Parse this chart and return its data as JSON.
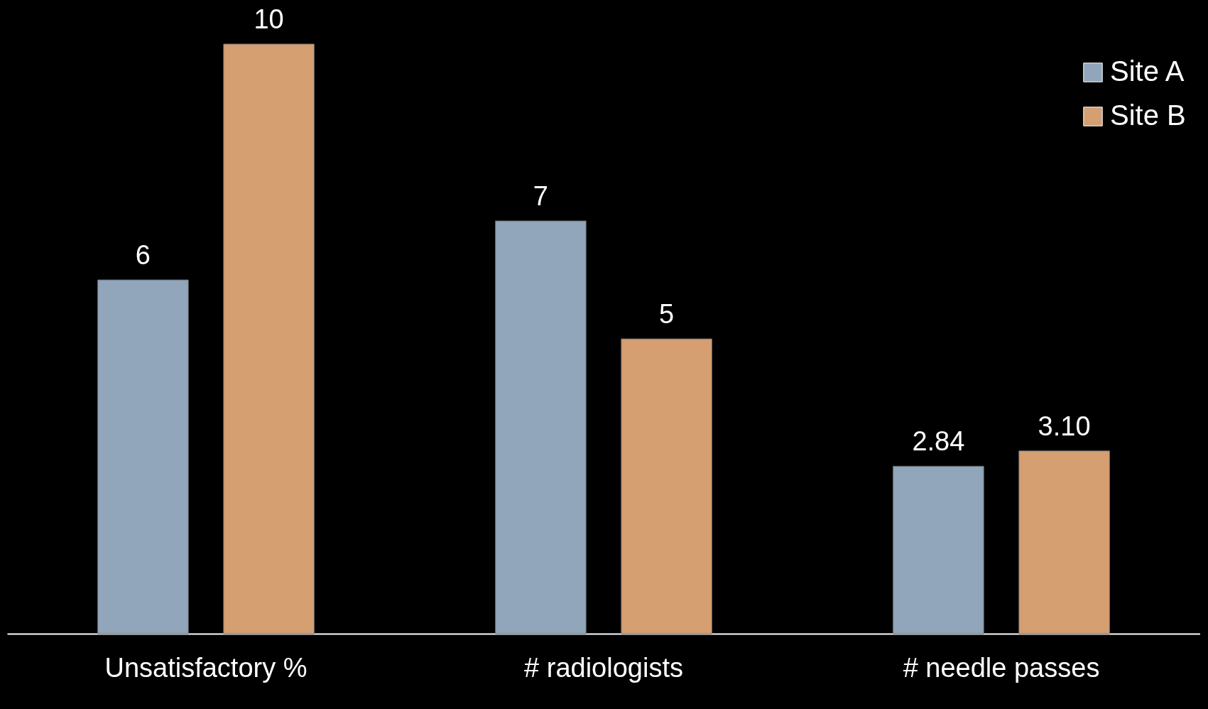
{
  "chart_data": {
    "type": "bar",
    "categories": [
      "Unsatisfactory %",
      "# radiologists",
      "# needle passes"
    ],
    "series": [
      {
        "name": "Site A",
        "color": "#91a6bb",
        "values": [
          6,
          7,
          2.84
        ],
        "value_labels": [
          "6",
          "7",
          "2.84"
        ]
      },
      {
        "name": "Site B",
        "color": "#d59f72",
        "values": [
          10,
          5,
          3.1
        ],
        "value_labels": [
          "10",
          "5",
          "3.10"
        ]
      }
    ],
    "legend": "top right"
  }
}
